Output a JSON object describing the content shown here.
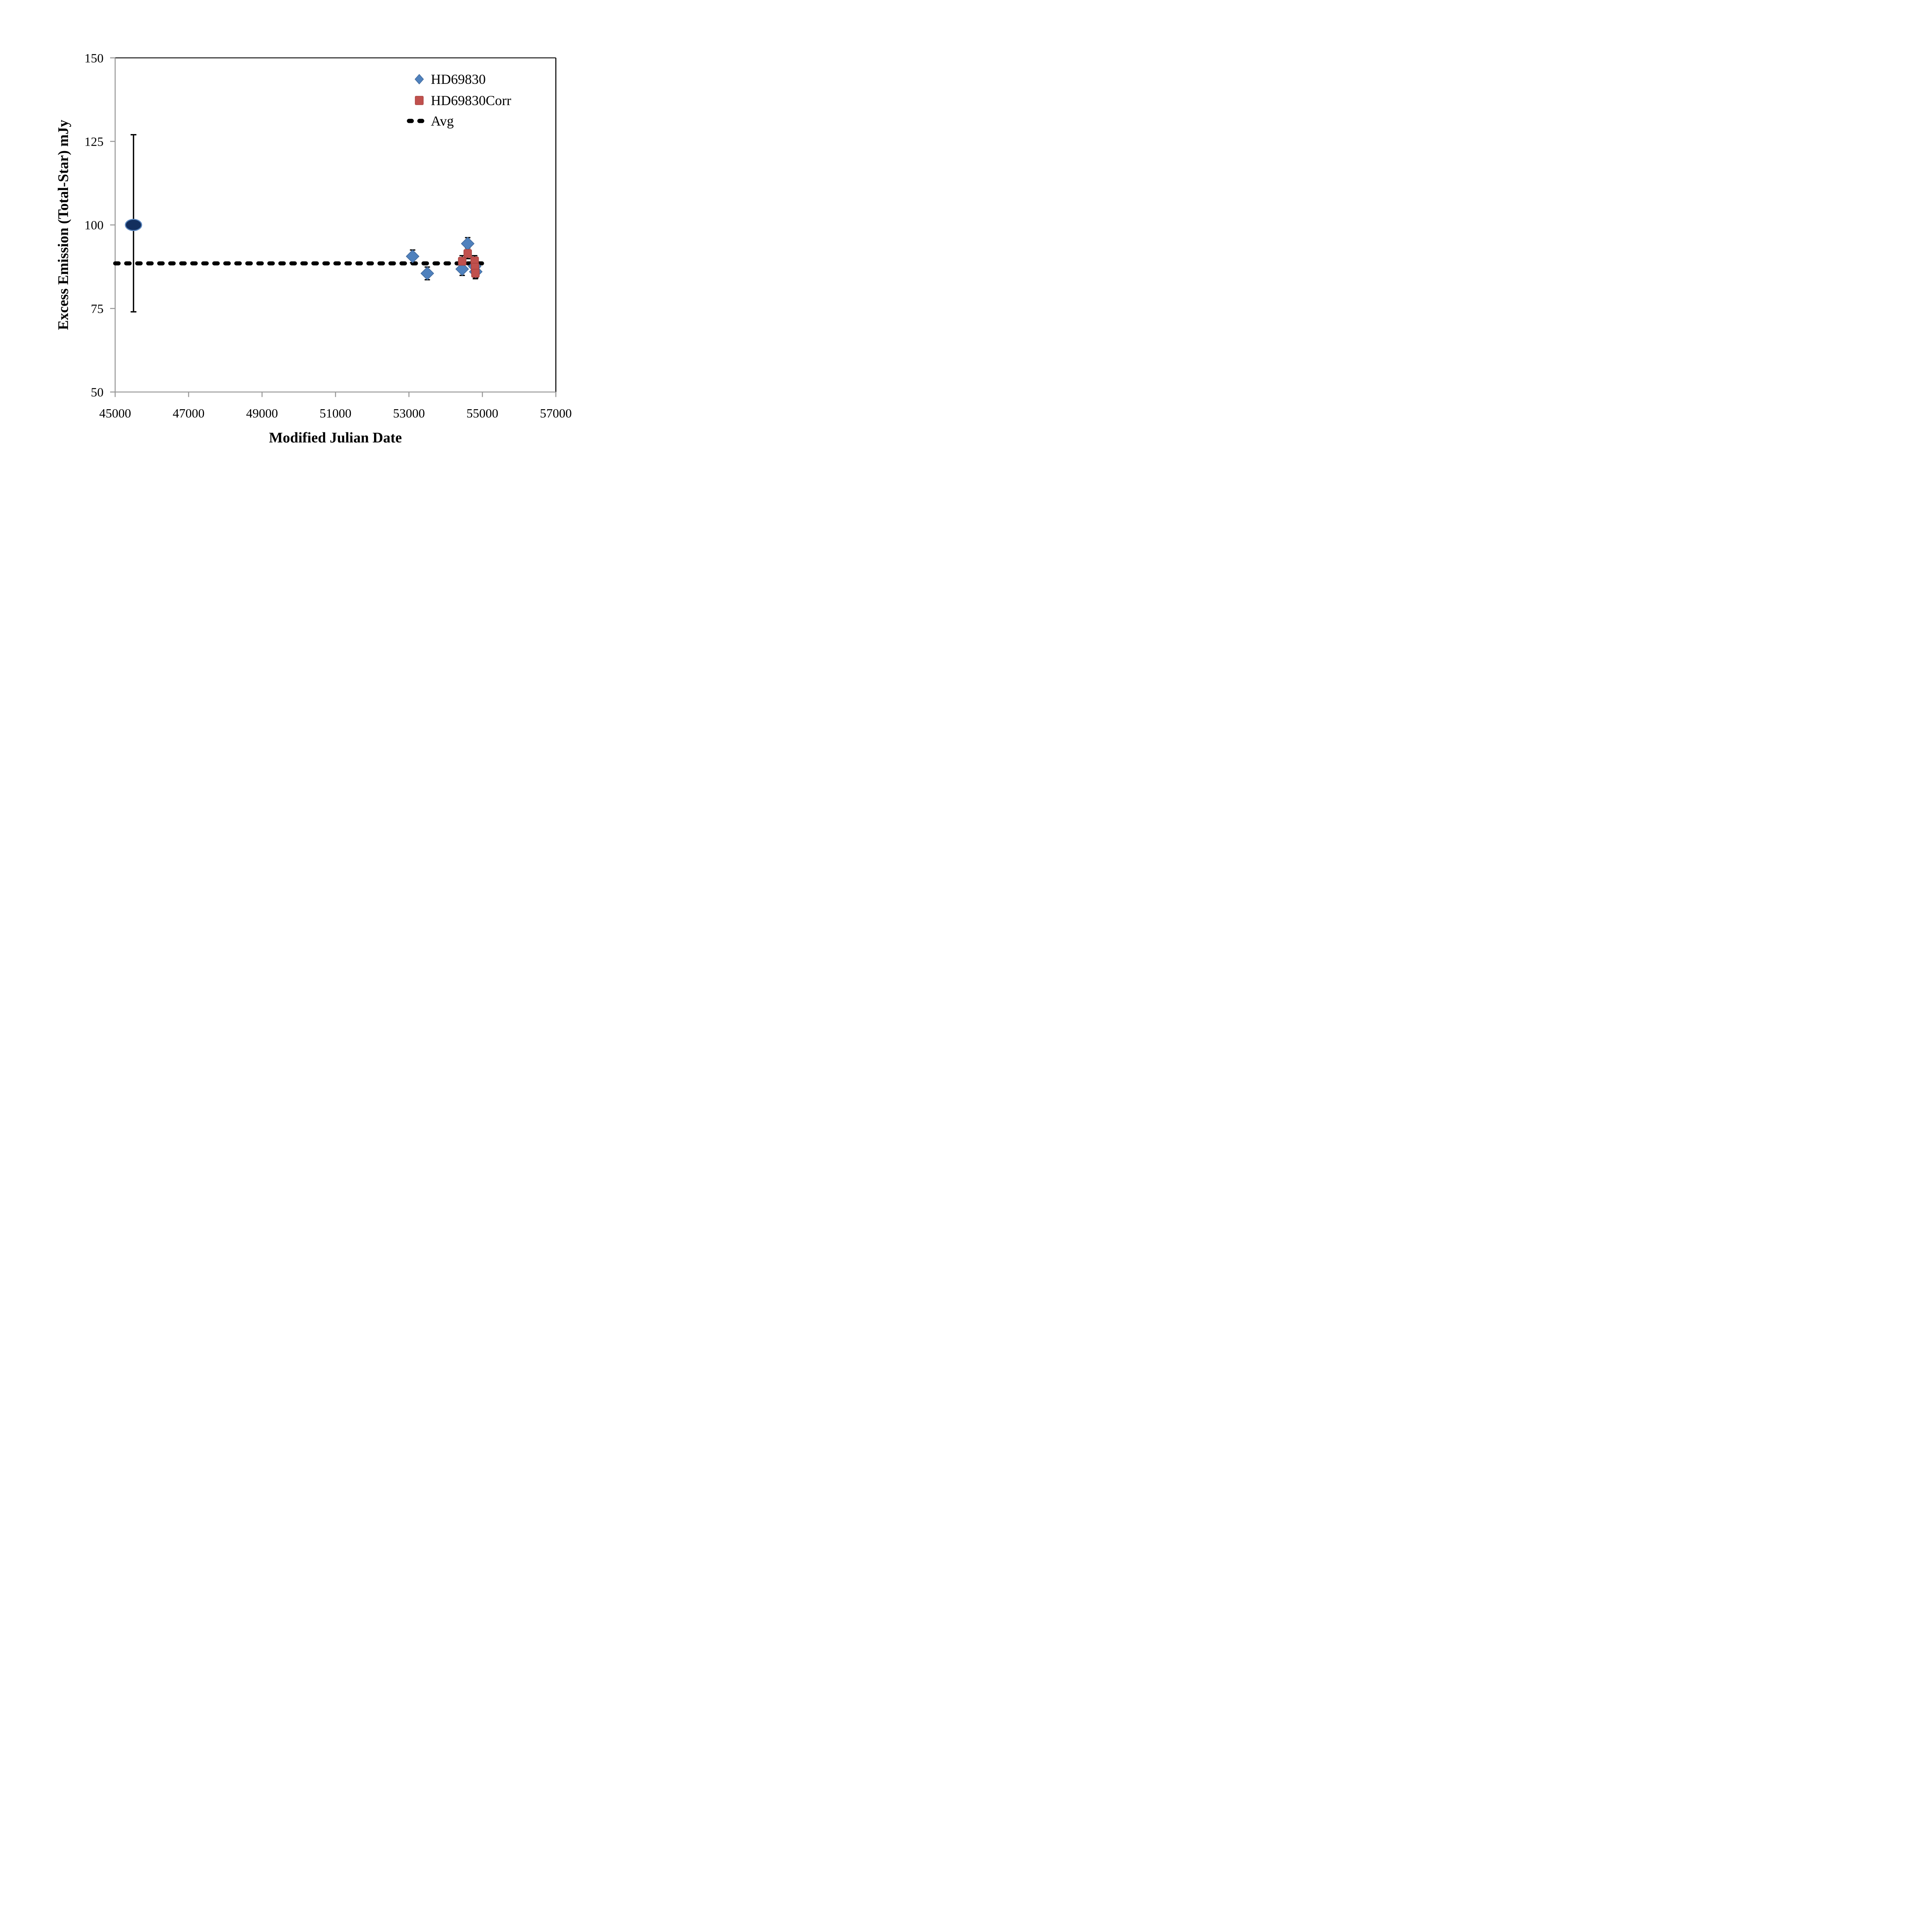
{
  "chart_data": {
    "type": "scatter",
    "title": "",
    "xlabel": "Modified Julian Date",
    "ylabel": "Excess Emission (Total-Star) mJy",
    "xlim": [
      45000,
      57000
    ],
    "ylim": [
      50,
      150
    ],
    "x_ticks": [
      45000,
      47000,
      49000,
      51000,
      53000,
      55000,
      57000
    ],
    "y_ticks": [
      50,
      75,
      100,
      125,
      150
    ],
    "grid": false,
    "legend_position": "top-right",
    "frame_color": "#000000",
    "axis_color": "#989898",
    "series": [
      {
        "name": "HD69830",
        "marker": "diamond",
        "color": "#4F81BD",
        "edge_color": "#41699c",
        "points": [
          {
            "x": 53100,
            "y": 90.6,
            "err": 1.9
          },
          {
            "x": 53500,
            "y": 85.5,
            "err": 1.9
          },
          {
            "x": 54450,
            "y": 86.8,
            "err": 1.9
          },
          {
            "x": 54600,
            "y": 94.4,
            "err": 1.8
          },
          {
            "x": 54790,
            "y": 87.6,
            "err": 1.5
          },
          {
            "x": 54820,
            "y": 86.0,
            "err": 1.8
          }
        ]
      },
      {
        "name": "HD69830Corr",
        "marker": "square",
        "color": "#C0504D",
        "edge_color": "#a8423f",
        "points": [
          {
            "x": 54450,
            "y": 89.2,
            "err": 1.6
          },
          {
            "x": 54600,
            "y": 91.5,
            "err": 1.6
          },
          {
            "x": 54790,
            "y": 89.3,
            "err": 1.5
          },
          {
            "x": 54800,
            "y": 87.4,
            "err": 1.5
          },
          {
            "x": 54810,
            "y": 85.6,
            "err": 1.7
          }
        ]
      },
      {
        "name": "Avg",
        "marker": "dashed-line",
        "color": "#000000",
        "value": 88.5,
        "x_start": 45000,
        "x_end": 55100
      }
    ],
    "large_point": {
      "marker": "circle",
      "fill": "#132F5E",
      "edge": "#5B87C0",
      "x": 45500,
      "y": 100,
      "err_plus": 27,
      "err_minus": 26
    },
    "error_bar_color": "#000000"
  }
}
